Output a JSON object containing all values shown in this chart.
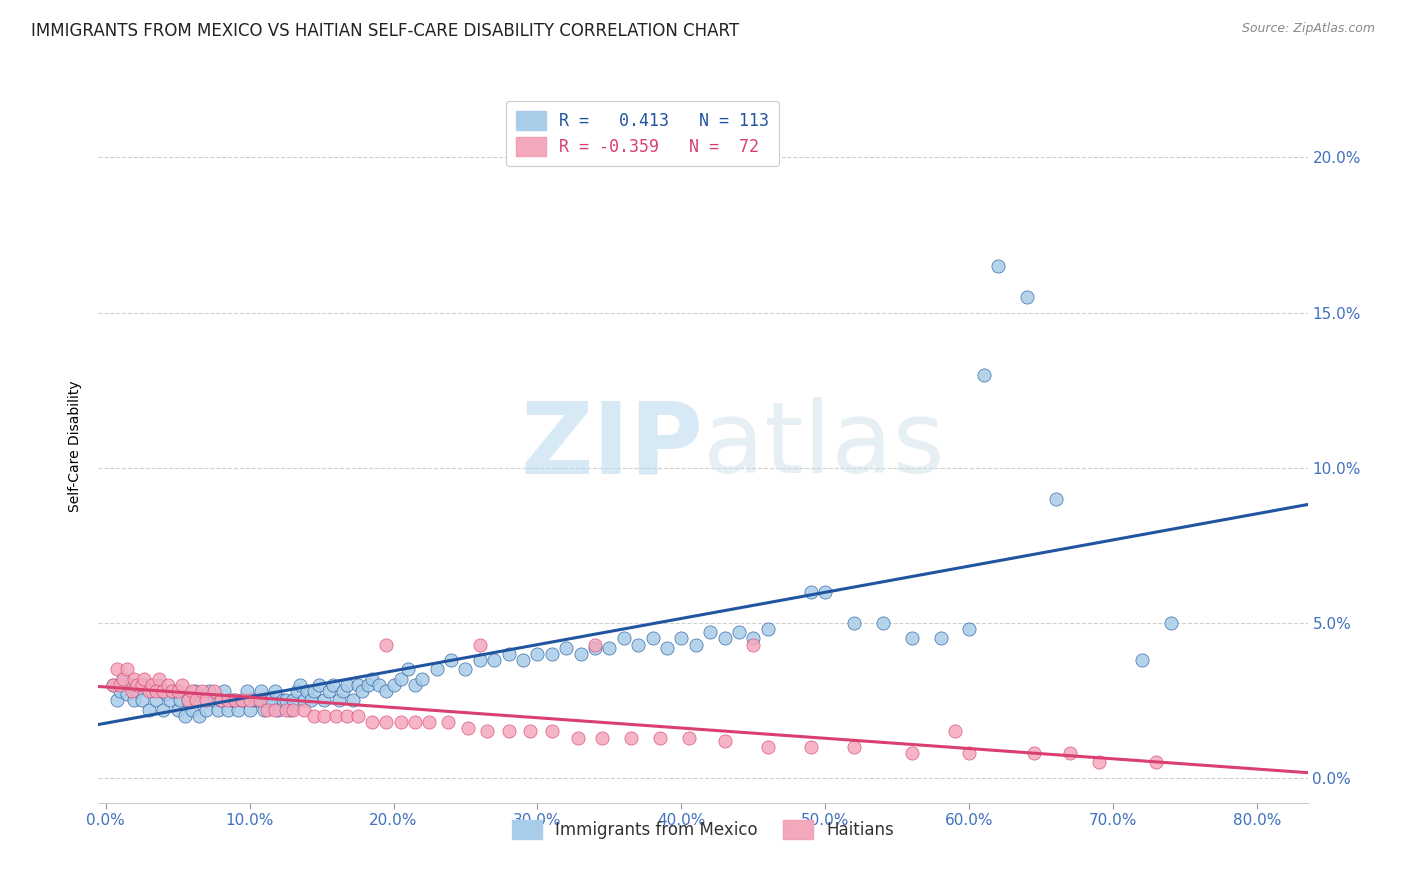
{
  "title": "IMMIGRANTS FROM MEXICO VS HAITIAN SELF-CARE DISABILITY CORRELATION CHART",
  "source": "Source: ZipAtlas.com",
  "xlabel_ticks": [
    "0.0%",
    "10.0%",
    "20.0%",
    "30.0%",
    "40.0%",
    "50.0%",
    "60.0%",
    "70.0%",
    "80.0%"
  ],
  "xlabel_vals": [
    0.0,
    0.1,
    0.2,
    0.3,
    0.4,
    0.5,
    0.6,
    0.7,
    0.8
  ],
  "ylabel": "Self-Care Disability",
  "ylabel_ticks": [
    "0.0%",
    "5.0%",
    "10.0%",
    "15.0%",
    "20.0%"
  ],
  "ylabel_vals": [
    0.0,
    0.05,
    0.1,
    0.15,
    0.2
  ],
  "ylim": [
    -0.008,
    0.222
  ],
  "xlim": [
    -0.005,
    0.835
  ],
  "blue_color": "#a8cde8",
  "pink_color": "#f4a8bc",
  "blue_line_color": "#2155a0",
  "pink_line_color": "#d94070",
  "tick_color": "#4070c0",
  "legend_blue_label": "R =   0.413   N = 113",
  "legend_pink_label": "R = -0.359   N =  72",
  "legend_bottom_blue": "Immigrants from Mexico",
  "legend_bottom_pink": "Haitians",
  "watermark_zip": "ZIP",
  "watermark_atlas": "atlas",
  "background_color": "#ffffff",
  "grid_color": "#d0d0d0",
  "title_fontsize": 12,
  "axis_label_fontsize": 10,
  "tick_fontsize": 11,
  "legend_fontsize": 12,
  "blue_scatter_x": [
    0.005,
    0.008,
    0.01,
    0.012,
    0.015,
    0.018,
    0.02,
    0.022,
    0.025,
    0.027,
    0.03,
    0.032,
    0.035,
    0.037,
    0.04,
    0.042,
    0.045,
    0.047,
    0.05,
    0.052,
    0.055,
    0.057,
    0.06,
    0.062,
    0.065,
    0.067,
    0.07,
    0.072,
    0.075,
    0.078,
    0.08,
    0.082,
    0.085,
    0.088,
    0.09,
    0.092,
    0.095,
    0.098,
    0.1,
    0.103,
    0.105,
    0.108,
    0.11,
    0.113,
    0.115,
    0.118,
    0.12,
    0.123,
    0.125,
    0.128,
    0.13,
    0.133,
    0.135,
    0.138,
    0.14,
    0.143,
    0.145,
    0.148,
    0.152,
    0.155,
    0.158,
    0.162,
    0.165,
    0.168,
    0.172,
    0.175,
    0.178,
    0.182,
    0.185,
    0.19,
    0.195,
    0.2,
    0.205,
    0.21,
    0.215,
    0.22,
    0.23,
    0.24,
    0.25,
    0.26,
    0.27,
    0.28,
    0.29,
    0.3,
    0.31,
    0.32,
    0.33,
    0.34,
    0.35,
    0.36,
    0.37,
    0.38,
    0.39,
    0.4,
    0.41,
    0.42,
    0.43,
    0.44,
    0.45,
    0.46,
    0.49,
    0.5,
    0.52,
    0.54,
    0.56,
    0.58,
    0.6,
    0.61,
    0.62,
    0.64,
    0.66,
    0.72,
    0.74
  ],
  "blue_scatter_y": [
    0.03,
    0.025,
    0.028,
    0.032,
    0.027,
    0.03,
    0.025,
    0.028,
    0.025,
    0.03,
    0.022,
    0.028,
    0.025,
    0.03,
    0.022,
    0.027,
    0.025,
    0.028,
    0.022,
    0.025,
    0.02,
    0.025,
    0.022,
    0.028,
    0.02,
    0.025,
    0.022,
    0.028,
    0.025,
    0.022,
    0.025,
    0.028,
    0.022,
    0.025,
    0.025,
    0.022,
    0.025,
    0.028,
    0.022,
    0.025,
    0.025,
    0.028,
    0.022,
    0.025,
    0.025,
    0.028,
    0.022,
    0.025,
    0.025,
    0.022,
    0.025,
    0.028,
    0.03,
    0.025,
    0.028,
    0.025,
    0.028,
    0.03,
    0.025,
    0.028,
    0.03,
    0.025,
    0.028,
    0.03,
    0.025,
    0.03,
    0.028,
    0.03,
    0.032,
    0.03,
    0.028,
    0.03,
    0.032,
    0.035,
    0.03,
    0.032,
    0.035,
    0.038,
    0.035,
    0.038,
    0.038,
    0.04,
    0.038,
    0.04,
    0.04,
    0.042,
    0.04,
    0.042,
    0.042,
    0.045,
    0.043,
    0.045,
    0.042,
    0.045,
    0.043,
    0.047,
    0.045,
    0.047,
    0.045,
    0.048,
    0.06,
    0.06,
    0.05,
    0.05,
    0.045,
    0.045,
    0.048,
    0.13,
    0.165,
    0.155,
    0.09,
    0.038,
    0.05
  ],
  "pink_scatter_x": [
    0.005,
    0.008,
    0.01,
    0.012,
    0.015,
    0.018,
    0.02,
    0.022,
    0.025,
    0.027,
    0.03,
    0.032,
    0.035,
    0.037,
    0.04,
    0.043,
    0.046,
    0.05,
    0.053,
    0.057,
    0.06,
    0.063,
    0.067,
    0.07,
    0.075,
    0.08,
    0.085,
    0.09,
    0.095,
    0.1,
    0.107,
    0.112,
    0.118,
    0.125,
    0.13,
    0.138,
    0.145,
    0.152,
    0.16,
    0.168,
    0.175,
    0.185,
    0.195,
    0.205,
    0.215,
    0.225,
    0.238,
    0.252,
    0.265,
    0.28,
    0.295,
    0.31,
    0.328,
    0.345,
    0.365,
    0.385,
    0.405,
    0.43,
    0.46,
    0.49,
    0.52,
    0.56,
    0.6,
    0.645,
    0.69,
    0.73,
    0.195,
    0.26,
    0.34,
    0.45,
    0.59,
    0.67
  ],
  "pink_scatter_y": [
    0.03,
    0.035,
    0.03,
    0.032,
    0.035,
    0.028,
    0.032,
    0.03,
    0.03,
    0.032,
    0.028,
    0.03,
    0.028,
    0.032,
    0.028,
    0.03,
    0.028,
    0.028,
    0.03,
    0.025,
    0.028,
    0.025,
    0.028,
    0.025,
    0.028,
    0.025,
    0.025,
    0.025,
    0.025,
    0.025,
    0.025,
    0.022,
    0.022,
    0.022,
    0.022,
    0.022,
    0.02,
    0.02,
    0.02,
    0.02,
    0.02,
    0.018,
    0.018,
    0.018,
    0.018,
    0.018,
    0.018,
    0.016,
    0.015,
    0.015,
    0.015,
    0.015,
    0.013,
    0.013,
    0.013,
    0.013,
    0.013,
    0.012,
    0.01,
    0.01,
    0.01,
    0.008,
    0.008,
    0.008,
    0.005,
    0.005,
    0.043,
    0.043,
    0.043,
    0.043,
    0.015,
    0.008
  ]
}
